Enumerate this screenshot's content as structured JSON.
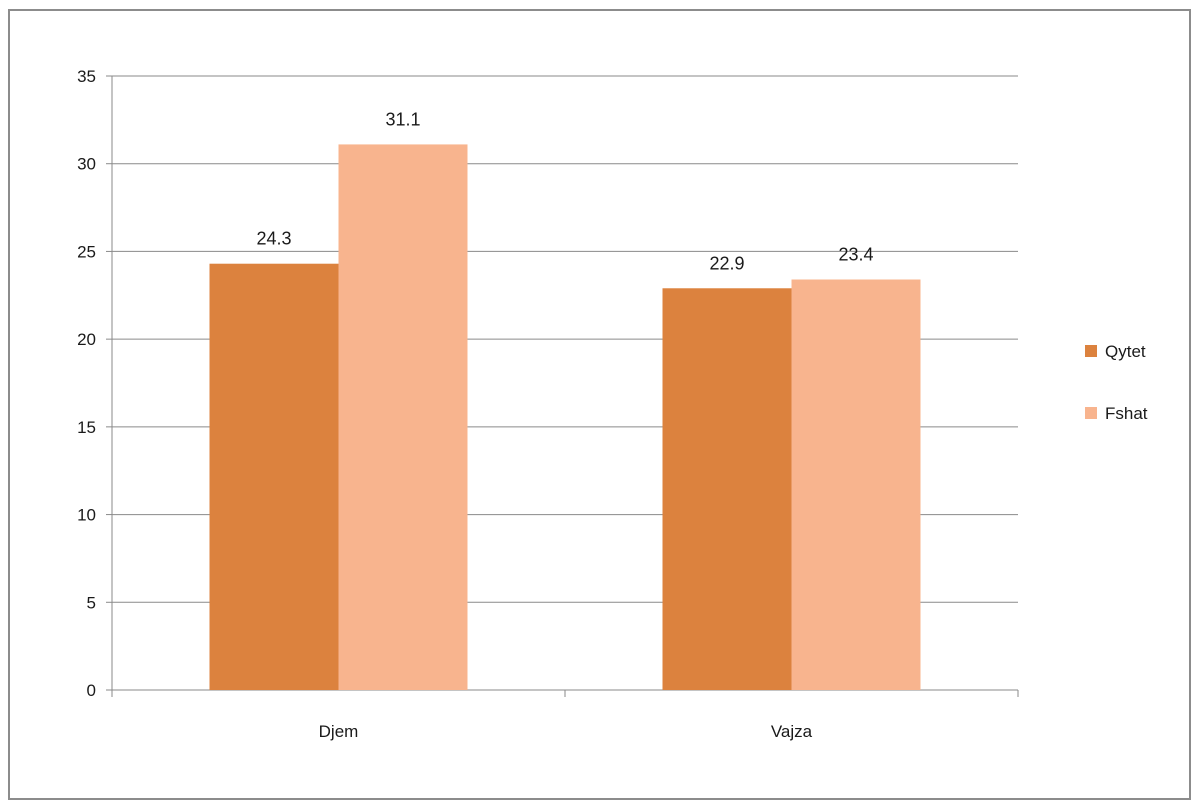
{
  "chart_data": {
    "type": "bar",
    "categories": [
      "Djem",
      "Vajza"
    ],
    "series": [
      {
        "name": "Qytet",
        "values": [
          24.3,
          22.9
        ],
        "color": "#dc823e"
      },
      {
        "name": "Fshat",
        "values": [
          31.1,
          23.4
        ],
        "color": "#f8b48e"
      }
    ],
    "data_labels": [
      [
        "24.3",
        "22.9"
      ],
      [
        "31.1",
        "23.4"
      ]
    ],
    "yticks": [
      "0",
      "5",
      "10",
      "15",
      "20",
      "25",
      "30",
      "35"
    ],
    "ylim": [
      0,
      35
    ],
    "grid": true,
    "legend_position": "right"
  }
}
